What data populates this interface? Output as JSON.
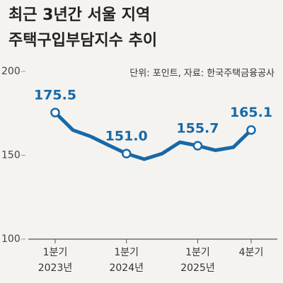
{
  "chart_data": {
    "type": "line",
    "title": [
      "최근 3년간 서울 지역",
      "주택구입부담지수 추이"
    ],
    "note": "단위: 포인트, 자료: 한국주택금융공사",
    "categories": [
      [
        "1분기",
        "2023년"
      ],
      null,
      null,
      null,
      [
        "1분기",
        "2024년"
      ],
      null,
      null,
      null,
      [
        "1분기",
        "2025년"
      ],
      null,
      null,
      [
        "4분기"
      ]
    ],
    "values": [
      175.5,
      165,
      161.2,
      156,
      151.0,
      147.7,
      151,
      157.8,
      155.7,
      153,
      154.8,
      165.1
    ],
    "value_labels": [
      "175.5",
      null,
      null,
      null,
      "151.0",
      null,
      null,
      null,
      "155.7",
      null,
      null,
      "165.1"
    ],
    "color": "#1769a8",
    "ylim": [
      100,
      200
    ],
    "yticks": [
      100,
      150,
      200
    ]
  }
}
